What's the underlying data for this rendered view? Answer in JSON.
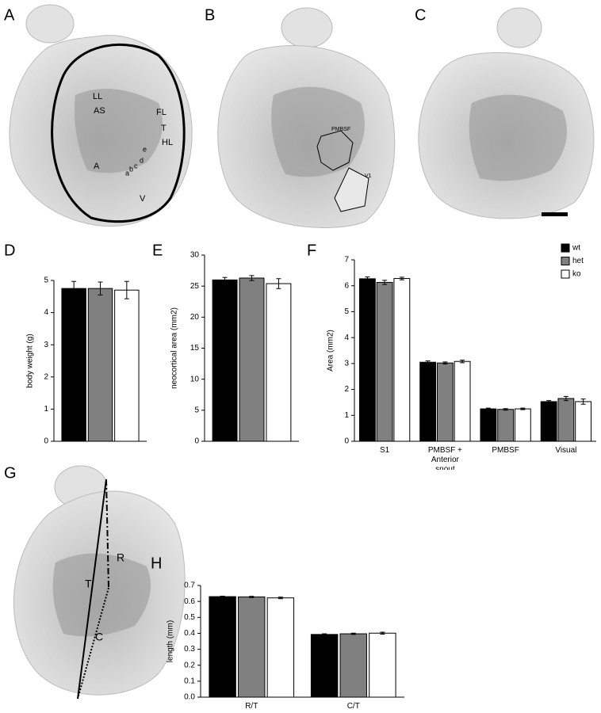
{
  "images": [
    {
      "label": "A",
      "annotations": [
        "LL",
        "AS",
        "FL",
        "T",
        "HL",
        "e",
        "d",
        "c",
        "b",
        "a",
        "A",
        "V"
      ]
    },
    {
      "label": "B",
      "annotations": [
        "PMBSF",
        "V1"
      ]
    },
    {
      "label": "C",
      "annotations": []
    },
    {
      "label": "G",
      "annotations": [
        "T",
        "R",
        "C"
      ]
    }
  ],
  "chart_data": [
    {
      "type": "bar",
      "panel": "D",
      "ylabel": "body weight (g)",
      "ylim": [
        0,
        5
      ],
      "yticks": [
        0,
        1,
        2,
        3,
        4,
        5
      ],
      "series": [
        {
          "color": "#000000",
          "values": [
            4.75
          ],
          "errors": [
            0.22
          ]
        },
        {
          "color": "#808080",
          "values": [
            4.75
          ],
          "errors": [
            0.2
          ]
        },
        {
          "color": "#ffffff",
          "values": [
            4.7
          ],
          "errors": [
            0.27
          ]
        }
      ]
    },
    {
      "type": "bar",
      "panel": "E",
      "ylabel": "neocortical area (mm2)",
      "ylim": [
        0,
        30
      ],
      "yticks": [
        0,
        5,
        10,
        15,
        20,
        25,
        30
      ],
      "series": [
        {
          "color": "#000000",
          "values": [
            26.0
          ],
          "errors": [
            0.4
          ]
        },
        {
          "color": "#808080",
          "values": [
            26.3
          ],
          "errors": [
            0.4
          ]
        },
        {
          "color": "#ffffff",
          "values": [
            25.4
          ],
          "errors": [
            0.8
          ]
        }
      ]
    },
    {
      "type": "bar",
      "panel": "F",
      "ylabel": "Area (mm2)",
      "ylim": [
        0,
        7
      ],
      "yticks": [
        0,
        1,
        2,
        3,
        4,
        5,
        6,
        7
      ],
      "categories": [
        "S1",
        "PMBSF + Anterior snout",
        "PMBSF",
        "Visual"
      ],
      "legend": "upper right",
      "series": [
        {
          "name": "wt",
          "color": "#000000",
          "values": [
            6.27,
            3.05,
            1.25,
            1.53
          ],
          "errors": [
            0.07,
            0.05,
            0.03,
            0.04
          ]
        },
        {
          "name": "het",
          "color": "#808080",
          "values": [
            6.13,
            3.02,
            1.23,
            1.65
          ],
          "errors": [
            0.08,
            0.04,
            0.03,
            0.08
          ]
        },
        {
          "name": "ko",
          "color": "#ffffff",
          "values": [
            6.28,
            3.08,
            1.25,
            1.53
          ],
          "errors": [
            0.05,
            0.05,
            0.03,
            0.1
          ]
        }
      ]
    },
    {
      "type": "bar",
      "panel": "H",
      "ylabel": "length (mm)",
      "ylim": [
        0,
        0.7
      ],
      "yticks": [
        {
          "value": 0,
          "label": "0.0"
        },
        0.1,
        0.2,
        0.3,
        0.4,
        0.5,
        0.6,
        0.7
      ],
      "categories": [
        "R/T",
        "C/T"
      ],
      "series": [
        {
          "color": "#000000",
          "values": [
            0.63,
            0.393
          ],
          "errors": [
            0.003,
            0.004
          ]
        },
        {
          "color": "#808080",
          "values": [
            0.628,
            0.397
          ],
          "errors": [
            0.004,
            0.004
          ]
        },
        {
          "color": "#ffffff",
          "values": [
            0.622,
            0.401
          ],
          "errors": [
            0.005,
            0.006
          ]
        }
      ]
    }
  ]
}
